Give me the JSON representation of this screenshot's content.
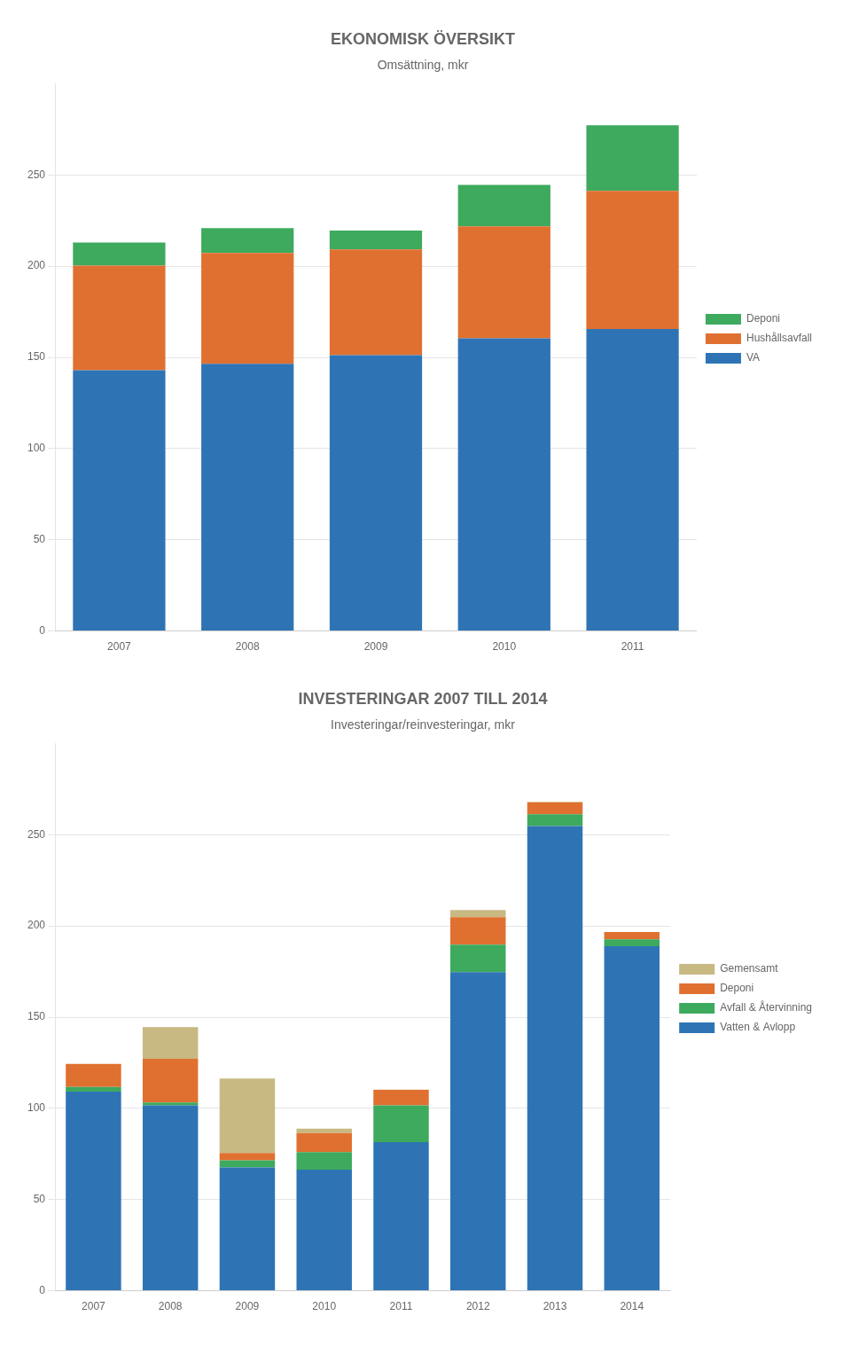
{
  "chart_data": [
    {
      "type": "bar",
      "title": "EKONOMISK ÖVERSIKT",
      "subtitle": "Omsättning, mkr",
      "categories": [
        "2007",
        "2008",
        "2009",
        "2010",
        "2011"
      ],
      "series": [
        {
          "name": "VA",
          "color": "#2e74b5",
          "values": [
            143,
            146.5,
            151.2,
            160.4,
            165.5
          ]
        },
        {
          "name": "Hushållsavfall",
          "color": "#e07030",
          "values": [
            57.3,
            60.7,
            58.0,
            61.4,
            75.8
          ]
        },
        {
          "name": "Deponi",
          "color": "#3daa5e",
          "values": [
            12.7,
            13.7,
            10.3,
            22.8,
            35.9
          ]
        }
      ],
      "stacked": true,
      "ylim": [
        0,
        300
      ],
      "yticks": [
        0,
        50,
        100,
        150,
        200,
        250
      ],
      "grid": true,
      "legend": "right"
    },
    {
      "type": "bar",
      "title": "INVESTERINGAR 2007 TILL 2014",
      "subtitle": "Investeringar/reinvesteringar, mkr",
      "categories": [
        "2007",
        "2008",
        "2009",
        "2010",
        "2011",
        "2012",
        "2013",
        "2014"
      ],
      "series": [
        {
          "name": "Vatten & Avlopp",
          "color": "#2e74b5",
          "values": [
            109.2,
            101.6,
            67.6,
            66.4,
            81.5,
            174.7,
            254.8,
            188.9
          ]
        },
        {
          "name": "Avfall & Återvinning",
          "color": "#3daa5e",
          "values": [
            2.5,
            1.6,
            3.9,
            9.6,
            20.1,
            15.0,
            6.4,
            3.8
          ]
        },
        {
          "name": "Deponi",
          "color": "#e07030",
          "values": [
            12.6,
            23.9,
            4.0,
            10.5,
            8.6,
            15.1,
            6.5,
            4.0
          ]
        },
        {
          "name": "Gemensamt",
          "color": "#c8b882",
          "values": [
            0.0,
            17.4,
            40.8,
            2.4,
            0.1,
            3.9,
            0.3,
            0.0
          ]
        }
      ],
      "stacked": true,
      "ylim": [
        0,
        300
      ],
      "yticks": [
        0,
        50,
        100,
        150,
        200,
        250
      ],
      "grid": true,
      "legend": "right"
    }
  ]
}
